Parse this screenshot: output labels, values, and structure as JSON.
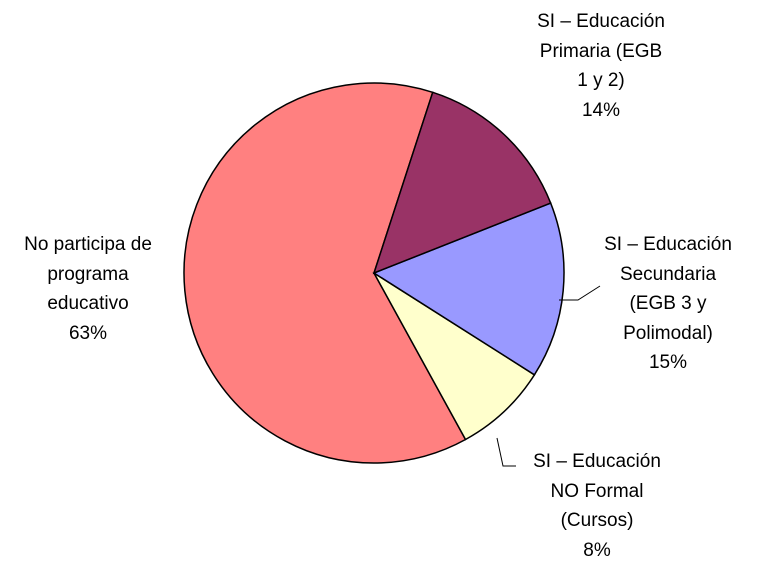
{
  "chart_data": {
    "type": "pie",
    "categories": [
      "SI – Educación\nPrimaria (EGB\n1 y 2)",
      "SI – Educación\nSecundaria\n(EGB 3 y\nPolimodal)",
      "SI – Educación\nNO Formal\n(Cursos)",
      "No participa de\nprograma\neducativo"
    ],
    "values": [
      14,
      15,
      8,
      63
    ],
    "value_labels": [
      "14%",
      "15%",
      "8%",
      "63%"
    ],
    "colors": [
      "#993366",
      "#9999ff",
      "#ffffcc",
      "#ff8080"
    ]
  }
}
